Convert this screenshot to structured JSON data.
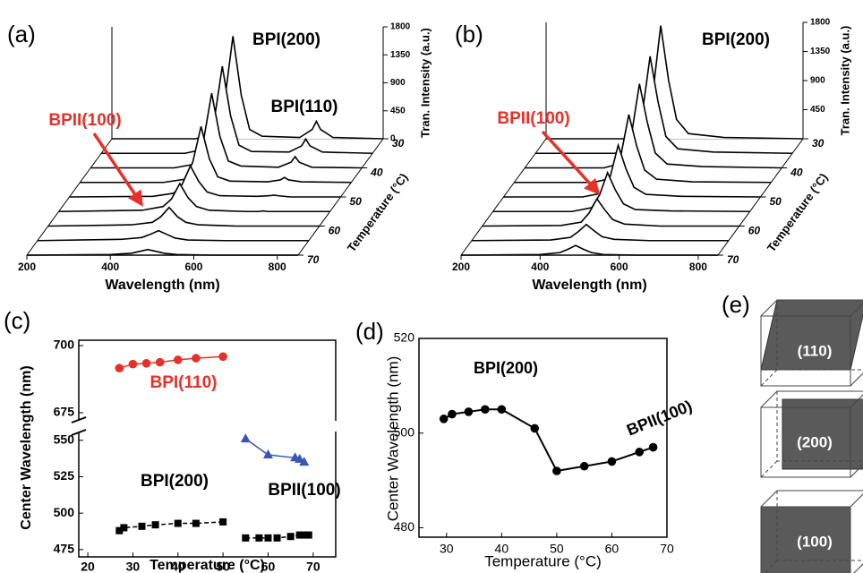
{
  "chart_data": [
    {
      "type": "waterfall",
      "label": "(a)",
      "x": [
        200,
        400,
        450,
        470,
        490,
        510,
        530,
        560,
        650,
        680,
        690,
        700,
        730,
        850
      ],
      "xlim": [
        200,
        850
      ],
      "xticks": [
        200,
        400,
        600,
        800
      ],
      "xlabel": "Wavelength (nm)",
      "ylim": [
        0,
        1800
      ],
      "yticks": [
        0,
        450,
        900,
        1350,
        1800
      ],
      "ylabel": "Tran. Intensity (a.u.)",
      "zlim": [
        30,
        70
      ],
      "zticks": [
        30,
        40,
        50,
        60,
        70
      ],
      "zlabel": "Temperature (°C)",
      "color": "#000000",
      "series": [
        {
          "temperature": 30,
          "values": [
            0,
            0,
            80,
            600,
            1650,
            700,
            150,
            40,
            20,
            150,
            280,
            150,
            20,
            0
          ]
        },
        {
          "temperature": 35,
          "values": [
            0,
            0,
            70,
            500,
            1400,
            600,
            130,
            30,
            20,
            120,
            230,
            120,
            20,
            0
          ]
        },
        {
          "temperature": 40,
          "values": [
            0,
            0,
            60,
            420,
            1200,
            500,
            110,
            30,
            10,
            90,
            180,
            90,
            10,
            0
          ]
        },
        {
          "temperature": 45,
          "values": [
            0,
            0,
            50,
            320,
            900,
            380,
            90,
            20,
            10,
            40,
            80,
            40,
            10,
            0
          ]
        },
        {
          "temperature": 50,
          "values": [
            0,
            10,
            60,
            200,
            500,
            250,
            80,
            20,
            10,
            20,
            30,
            20,
            0,
            0
          ]
        },
        {
          "temperature": 55,
          "values": [
            0,
            20,
            80,
            200,
            450,
            220,
            80,
            20,
            0,
            0,
            10,
            0,
            0,
            0
          ]
        },
        {
          "temperature": 60,
          "values": [
            0,
            20,
            60,
            150,
            300,
            150,
            60,
            20,
            0,
            0,
            0,
            0,
            0,
            0
          ]
        },
        {
          "temperature": 65,
          "values": [
            0,
            20,
            50,
            100,
            160,
            100,
            40,
            10,
            0,
            0,
            0,
            0,
            0,
            0
          ]
        },
        {
          "temperature": 70,
          "values": [
            0,
            10,
            30,
            60,
            90,
            60,
            30,
            10,
            0,
            0,
            0,
            0,
            0,
            0
          ]
        }
      ],
      "annotations": [
        {
          "text": "BPI(200)",
          "color": "#000000"
        },
        {
          "text": "BPI(110)",
          "color": "#000000"
        },
        {
          "text": "BPII(100)",
          "color": "#e8302a"
        }
      ]
    },
    {
      "type": "waterfall",
      "label": "(b)",
      "x": [
        200,
        400,
        450,
        470,
        490,
        510,
        530,
        560,
        650,
        850
      ],
      "xlim": [
        200,
        850
      ],
      "xticks": [
        200,
        400,
        600,
        800
      ],
      "xlabel": "Wavelength (nm)",
      "ylim": [
        0,
        1800
      ],
      "yticks": [
        450,
        900,
        1350,
        1800
      ],
      "ylabel": "Tran. Intensity (a.u.)",
      "zlim": [
        30,
        70
      ],
      "zticks": [
        30,
        40,
        50,
        60,
        70
      ],
      "zlabel": "Temperature (°C)",
      "color": "#000000",
      "series": [
        {
          "temperature": 30,
          "values": [
            0,
            0,
            100,
            700,
            1750,
            900,
            300,
            80,
            20,
            0
          ]
        },
        {
          "temperature": 35,
          "values": [
            0,
            0,
            90,
            600,
            1500,
            800,
            260,
            70,
            20,
            0
          ]
        },
        {
          "temperature": 40,
          "values": [
            0,
            0,
            80,
            520,
            1300,
            700,
            230,
            60,
            20,
            0
          ]
        },
        {
          "temperature": 45,
          "values": [
            0,
            0,
            70,
            420,
            1050,
            560,
            190,
            50,
            10,
            0
          ]
        },
        {
          "temperature": 50,
          "values": [
            0,
            0,
            60,
            320,
            800,
            430,
            150,
            40,
            10,
            0
          ]
        },
        {
          "temperature": 55,
          "values": [
            0,
            0,
            60,
            260,
            600,
            330,
            120,
            30,
            10,
            0
          ]
        },
        {
          "temperature": 60,
          "values": [
            0,
            10,
            60,
            200,
            420,
            250,
            100,
            30,
            0,
            0
          ]
        },
        {
          "temperature": 65,
          "values": [
            0,
            10,
            50,
            140,
            250,
            150,
            60,
            20,
            0,
            0
          ]
        },
        {
          "temperature": 70,
          "values": [
            0,
            10,
            40,
            90,
            150,
            90,
            40,
            10,
            0,
            0
          ]
        }
      ],
      "annotations": [
        {
          "text": "BPI(200)",
          "color": "#000000"
        },
        {
          "text": "BPII(100)",
          "color": "#e8302a"
        }
      ]
    },
    {
      "type": "broken-line",
      "label": "(c)",
      "xlabel": "Temperature (°C)",
      "ylabel": "Center Wavelength (nm)",
      "xlim": [
        18,
        75
      ],
      "xticks": [
        20,
        30,
        40,
        50,
        60,
        70
      ],
      "ylim": [
        470,
        556
      ],
      "yticks": [
        475,
        500,
        525,
        550
      ],
      "ylim_upper": [
        672,
        702
      ],
      "yticks_upper": [
        675,
        700
      ],
      "series": [
        {
          "name": "BPI(110)",
          "color": "#e8302a",
          "marker": "circle",
          "axis": "upper",
          "linestyle": "solid",
          "x": [
            27,
            30,
            33,
            36,
            40,
            44,
            50
          ],
          "values": [
            691.6,
            693.1,
            693.4,
            693.8,
            694.7,
            695.3,
            695.9
          ]
        },
        {
          "color": "#3a55b4",
          "marker": "triangle",
          "axis": "lower",
          "linestyle": "solid",
          "x": [
            55,
            60,
            66,
            67,
            68
          ],
          "values": [
            551,
            540,
            538,
            537,
            535
          ]
        },
        {
          "name": "BPI(200)",
          "color": "#000000",
          "marker": "square",
          "axis": "lower",
          "linestyle": "dashed",
          "x": [
            27,
            28,
            32,
            35,
            40,
            44,
            50
          ],
          "values": [
            488,
            490,
            491,
            492,
            493,
            493,
            494
          ]
        },
        {
          "name": "BPII(100)",
          "color": "#000000",
          "marker": "square",
          "axis": "lower",
          "linestyle": "dashed",
          "x": [
            55,
            58,
            60,
            62,
            65,
            67,
            68,
            69
          ],
          "values": [
            483,
            483,
            483,
            483,
            484,
            485,
            485,
            485
          ]
        }
      ]
    },
    {
      "type": "line",
      "label": "(d)",
      "xlabel": "Temperature (°C)",
      "ylabel": "Center Wavelength (nm)",
      "xlim": [
        25,
        70
      ],
      "xticks": [
        30,
        40,
        50,
        60,
        70
      ],
      "ylim": [
        478,
        520
      ],
      "yticks": [
        480,
        500,
        520
      ],
      "series": [
        {
          "color": "#000000",
          "marker": "circle",
          "x": [
            29.5,
            31,
            34,
            37,
            40,
            46,
            50,
            55,
            60,
            65,
            67.5
          ],
          "values": [
            503,
            504,
            504.5,
            505,
            505,
            501,
            492,
            493,
            494,
            496,
            497
          ]
        }
      ],
      "annotations": [
        {
          "text": "BPI(200)"
        },
        {
          "text": "BPII(100)"
        }
      ]
    },
    {
      "type": "diagram",
      "label": "(e)",
      "planes": [
        "(110)",
        "(200)",
        "(100)"
      ]
    }
  ]
}
